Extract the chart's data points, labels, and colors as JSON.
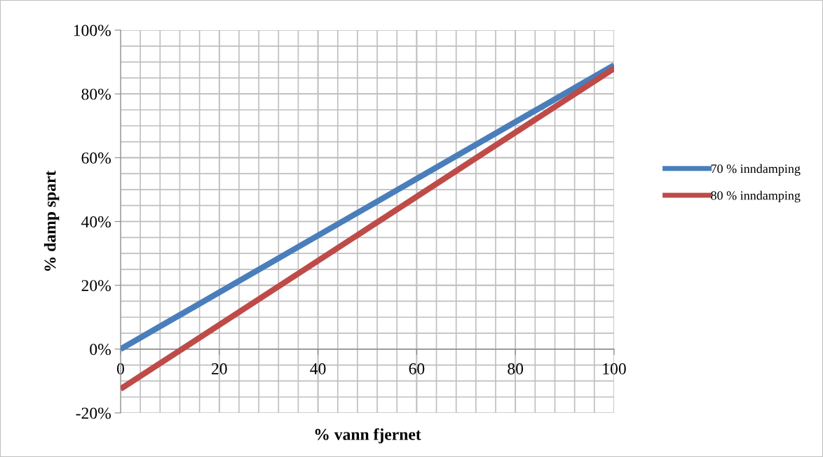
{
  "chart_data": {
    "type": "line",
    "xlabel": "% vann fjernet",
    "ylabel": "% damp spart",
    "x": [
      0,
      100
    ],
    "series": [
      {
        "name": "70 % inndamping",
        "color": "#4a7ebb",
        "values": [
          0,
          0.89
        ]
      },
      {
        "name": "80 % inndamping",
        "color": "#be4b48",
        "values": [
          -0.125,
          0.88
        ]
      }
    ],
    "xlim": [
      0,
      100
    ],
    "xticks": [
      0,
      20,
      40,
      60,
      80,
      100
    ],
    "ylim": [
      -0.2,
      1.0
    ],
    "yticks": [
      {
        "value": -0.2,
        "label": "-20%"
      },
      {
        "value": 0,
        "label": "0%"
      },
      {
        "value": 0.2,
        "label": "20%"
      },
      {
        "value": 0.4,
        "label": "40%"
      },
      {
        "value": 0.6,
        "label": "60%"
      },
      {
        "value": 0.8,
        "label": "80%"
      },
      {
        "value": 1.0,
        "label": "100%"
      }
    ],
    "grid": true,
    "legend": "right",
    "marker": "none",
    "line_style": "solid"
  }
}
